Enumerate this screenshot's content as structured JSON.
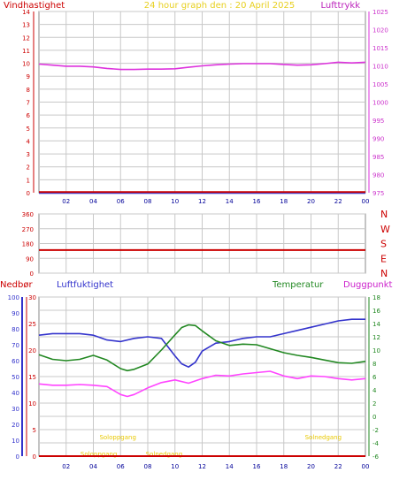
{
  "header": {
    "left_label": "Vindhastighet",
    "title": "24 hour graph den : 20 April 2025",
    "right_label": "Lufttrykk"
  },
  "colors": {
    "grid": "#c8c8c8",
    "frame": "#888888",
    "wind": "#cc0000",
    "pressure": "#dd33dd",
    "humidity": "#3333cc",
    "temperature": "#228822",
    "dewpoint": "#ff44ff",
    "rain": "#cc0000",
    "title": "#e8d020",
    "sun_text": "#e8c800",
    "x_ticks": "#000099"
  },
  "chart_data": [
    {
      "type": "line",
      "id": "wind-pressure",
      "x_ticks": [
        "02",
        "04",
        "06",
        "08",
        "10",
        "12",
        "14",
        "16",
        "18",
        "20",
        "22",
        "00"
      ],
      "y_left": {
        "label": "Vindhastighet",
        "range": [
          0,
          14
        ],
        "ticks": [
          "0",
          "1",
          "2",
          "3",
          "4",
          "5",
          "6",
          "7",
          "8",
          "9",
          "10",
          "11",
          "12",
          "13",
          "14"
        ]
      },
      "y_right": {
        "label": "Lufttrykk",
        "range": [
          975,
          1025
        ],
        "ticks": [
          "975",
          "980",
          "985",
          "990",
          "995",
          "1000",
          "1005",
          "1010",
          "1015",
          "1020",
          "1025"
        ]
      },
      "series": [
        {
          "key": "wind",
          "axis": "left",
          "x": [
            0,
            24
          ],
          "values": [
            0.05,
            0.05
          ]
        },
        {
          "key": "gust",
          "axis": "left",
          "x": [
            0,
            24
          ],
          "values": [
            -0.05,
            -0.05
          ]
        },
        {
          "key": "pressure",
          "axis": "right",
          "x": [
            0,
            1,
            2,
            3,
            4,
            5,
            6,
            7,
            8,
            9,
            10,
            11,
            12,
            13,
            14,
            15,
            16,
            17,
            18,
            19,
            20,
            21,
            22,
            23,
            24
          ],
          "values": [
            1010.5,
            1010.2,
            1009.9,
            1009.9,
            1009.7,
            1009.3,
            1009.0,
            1009.0,
            1009.1,
            1009.1,
            1009.2,
            1009.6,
            1010.0,
            1010.3,
            1010.5,
            1010.6,
            1010.6,
            1010.6,
            1010.4,
            1010.2,
            1010.3,
            1010.6,
            1011.0,
            1010.8,
            1011.0
          ]
        }
      ]
    },
    {
      "type": "line",
      "id": "wind-direction",
      "x_ticks": [
        "02",
        "04",
        "06",
        "08",
        "10",
        "12",
        "14",
        "16",
        "18",
        "20",
        "22",
        "00"
      ],
      "y_left": {
        "range": [
          0,
          360
        ],
        "ticks": [
          "0",
          "90",
          "180",
          "270",
          "360"
        ]
      },
      "direction_labels": [
        "N",
        "W",
        "S",
        "E",
        "N"
      ],
      "series": [
        {
          "key": "direction",
          "x": [
            0,
            24
          ],
          "values": [
            140,
            140
          ]
        }
      ]
    },
    {
      "type": "line",
      "id": "humidity-temperature",
      "labels": {
        "rain": "Nedbør",
        "humidity": "Luftfuktighet",
        "temperature": "Temperatur",
        "dewpoint": "Duggpunkt"
      },
      "x_ticks": [
        "02",
        "04",
        "06",
        "08",
        "10",
        "12",
        "14",
        "16",
        "18",
        "20",
        "22",
        "00"
      ],
      "y_humidity": {
        "range": [
          0,
          100
        ],
        "ticks": [
          "0",
          "10",
          "20",
          "30",
          "40",
          "50",
          "60",
          "70",
          "80",
          "90",
          "100"
        ]
      },
      "y_rain": {
        "range": [
          0,
          30
        ],
        "ticks": [
          "0",
          "5",
          "10",
          "15",
          "20",
          "25",
          "30"
        ]
      },
      "y_temperature": {
        "range": [
          -6,
          18
        ],
        "ticks": [
          "-6",
          "-4",
          "-2",
          "0",
          "2",
          "4",
          "6",
          "8",
          "10",
          "12",
          "14",
          "16",
          "18"
        ]
      },
      "sun_labels": [
        {
          "text": "Soloppgang",
          "hour": 5.8
        },
        {
          "text": "Solnedgang",
          "hour": 20.9
        }
      ],
      "sun_marks": [
        {
          "text": "Soloppgang",
          "hour": 4.4
        },
        {
          "text": "Solnedgang",
          "hour": 9.2
        }
      ],
      "series": [
        {
          "key": "humidity",
          "axis": "humidity",
          "x": [
            0,
            1,
            2,
            3,
            4,
            5,
            6,
            7,
            8,
            9,
            10,
            10.5,
            11,
            11.5,
            12,
            13,
            14,
            15,
            16,
            17,
            18,
            19,
            20,
            21,
            22,
            23,
            24
          ],
          "values": [
            76,
            77,
            77,
            77,
            76,
            73,
            72,
            74,
            75,
            74,
            63,
            58,
            56,
            59,
            66,
            71,
            72,
            74,
            75,
            75,
            77,
            79,
            81,
            83,
            85,
            86,
            86
          ]
        },
        {
          "key": "temperature",
          "axis": "temperature",
          "x": [
            0,
            1,
            2,
            3,
            4,
            5,
            6,
            6.5,
            7,
            8,
            9,
            10,
            10.5,
            11,
            11.5,
            12,
            13,
            14,
            15,
            16,
            17,
            18,
            19,
            20,
            21,
            22,
            23,
            24
          ],
          "values": [
            9.3,
            8.6,
            8.4,
            8.6,
            9.2,
            8.5,
            7.2,
            6.9,
            7.1,
            7.9,
            10.0,
            12.3,
            13.4,
            13.8,
            13.7,
            12.9,
            11.4,
            10.7,
            10.9,
            10.8,
            10.2,
            9.6,
            9.2,
            8.9,
            8.5,
            8.1,
            8.0,
            8.3
          ]
        },
        {
          "key": "dewpoint",
          "axis": "temperature",
          "x": [
            0,
            1,
            2,
            3,
            4,
            5,
            6,
            6.5,
            7,
            8,
            9,
            10,
            11,
            12,
            13,
            14,
            15,
            16,
            17,
            18,
            19,
            20,
            21,
            22,
            23,
            24
          ],
          "values": [
            4.9,
            4.7,
            4.7,
            4.8,
            4.7,
            4.5,
            3.3,
            3.0,
            3.3,
            4.3,
            5.1,
            5.5,
            5.0,
            5.7,
            6.2,
            6.1,
            6.4,
            6.6,
            6.8,
            6.1,
            5.7,
            6.1,
            6.0,
            5.7,
            5.5,
            5.7
          ]
        },
        {
          "key": "rain",
          "axis": "rain",
          "x": [
            0,
            24
          ],
          "values": [
            0,
            0
          ]
        }
      ]
    }
  ]
}
